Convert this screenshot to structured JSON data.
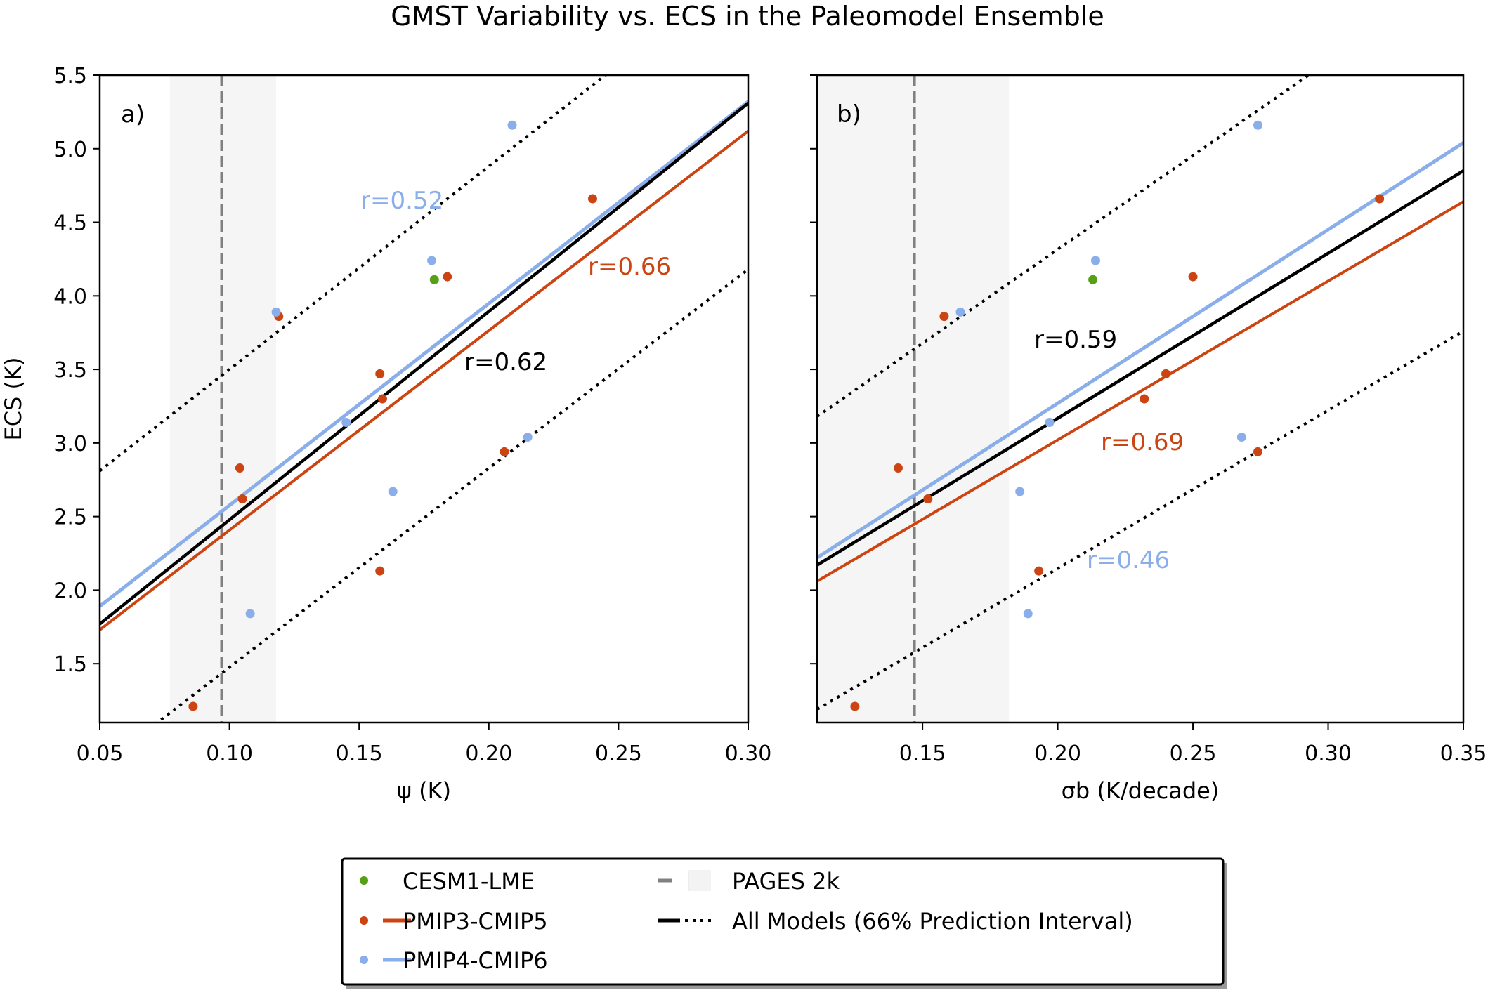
{
  "title": "GMST Variability vs. ECS in the Paleomodel Ensemble",
  "colors": {
    "cesm": "#55a014",
    "pmip3": "#cc4411",
    "pmip4": "#8aaeea",
    "all": "#000000",
    "pages": "#808080",
    "pages_band": "#f5f5f5"
  },
  "legend": {
    "placement": "bottom-center",
    "items": [
      {
        "label": "CESM1-LME"
      },
      {
        "label": "PMIP3-CMIP5"
      },
      {
        "label": "PMIP4-CMIP6"
      },
      {
        "label": "PAGES 2k"
      },
      {
        "label": "All Models (66% Prediction Interval)"
      }
    ]
  },
  "chart_data": [
    {
      "type": "scatter",
      "panel_label": "a)",
      "xlabel": "ψ (K)",
      "ylabel": "ECS (K)",
      "xlim": [
        0.05,
        0.3
      ],
      "ylim": [
        1.1,
        5.5
      ],
      "xticks": [
        "0.05",
        "0.10",
        "0.15",
        "0.20",
        "0.25",
        "0.30"
      ],
      "yticks": [
        "1.5",
        "2.0",
        "2.5",
        "3.0",
        "3.5",
        "4.0",
        "4.5",
        "5.0",
        "5.5"
      ],
      "pages2k": {
        "value": 0.097,
        "range": [
          0.077,
          0.118
        ]
      },
      "series": [
        {
          "name": "CESM1-LME",
          "points": [
            [
              0.179,
              4.11
            ]
          ]
        },
        {
          "name": "PMIP3-CMIP5",
          "points": [
            [
              0.086,
              1.21
            ],
            [
              0.104,
              2.83
            ],
            [
              0.105,
              2.62
            ],
            [
              0.119,
              3.86
            ],
            [
              0.158,
              3.47
            ],
            [
              0.159,
              3.3
            ],
            [
              0.158,
              2.13
            ],
            [
              0.184,
              4.13
            ],
            [
              0.206,
              2.94
            ],
            [
              0.24,
              4.66
            ]
          ],
          "fit": [
            [
              0.05,
              1.73
            ],
            [
              0.3,
              5.12
            ]
          ],
          "r_label": "r=0.66"
        },
        {
          "name": "PMIP4-CMIP6",
          "points": [
            [
              0.108,
              1.84
            ],
            [
              0.118,
              3.89
            ],
            [
              0.145,
              3.14
            ],
            [
              0.163,
              2.67
            ],
            [
              0.178,
              4.24
            ],
            [
              0.215,
              3.04
            ],
            [
              0.209,
              5.16
            ]
          ],
          "fit": [
            [
              0.05,
              1.89
            ],
            [
              0.3,
              5.32
            ]
          ],
          "r_label": "r=0.52"
        },
        {
          "name": "All Models",
          "fit": [
            [
              0.05,
              1.77
            ],
            [
              0.3,
              5.31
            ]
          ],
          "upper": [
            [
              0.05,
              2.81
            ],
            [
              0.3,
              6.26
            ]
          ],
          "lower": [
            [
              0.05,
              0.8
            ],
            [
              0.3,
              4.18
            ]
          ],
          "r_label": "r=0.62"
        }
      ]
    },
    {
      "type": "scatter",
      "panel_label": "b)",
      "xlabel": "σb (K/decade)",
      "ylabel": "",
      "xlim": [
        0.111,
        0.35
      ],
      "ylim": [
        1.1,
        5.5
      ],
      "xticks": [
        "0.15",
        "0.20",
        "0.25",
        "0.30",
        "0.35"
      ],
      "yticks": [
        "1.5",
        "2.0",
        "2.5",
        "3.0",
        "3.5",
        "4.0",
        "4.5",
        "5.0",
        "5.5"
      ],
      "pages2k": {
        "value": 0.147,
        "range": [
          0.111,
          0.182
        ]
      },
      "series": [
        {
          "name": "CESM1-LME",
          "points": [
            [
              0.213,
              4.11
            ]
          ]
        },
        {
          "name": "PMIP3-CMIP5",
          "points": [
            [
              0.125,
              1.21
            ],
            [
              0.141,
              2.83
            ],
            [
              0.152,
              2.62
            ],
            [
              0.158,
              3.86
            ],
            [
              0.24,
              3.47
            ],
            [
              0.232,
              3.3
            ],
            [
              0.193,
              2.13
            ],
            [
              0.25,
              4.13
            ],
            [
              0.274,
              2.94
            ],
            [
              0.319,
              4.66
            ]
          ],
          "fit": [
            [
              0.111,
              2.06
            ],
            [
              0.35,
              4.64
            ]
          ],
          "r_label": "r=0.69"
        },
        {
          "name": "PMIP4-CMIP6",
          "points": [
            [
              0.189,
              1.84
            ],
            [
              0.164,
              3.89
            ],
            [
              0.197,
              3.14
            ],
            [
              0.186,
              2.67
            ],
            [
              0.214,
              4.24
            ],
            [
              0.268,
              3.04
            ],
            [
              0.274,
              5.16
            ]
          ],
          "fit": [
            [
              0.111,
              2.22
            ],
            [
              0.35,
              5.04
            ]
          ],
          "r_label": "r=0.46"
        },
        {
          "name": "All Models",
          "fit": [
            [
              0.111,
              2.17
            ],
            [
              0.35,
              4.85
            ]
          ],
          "upper": [
            [
              0.111,
              3.18
            ],
            [
              0.35,
              6.23
            ]
          ],
          "lower": [
            [
              0.111,
              1.19
            ],
            [
              0.35,
              3.76
            ]
          ],
          "r_label": "r=0.59"
        }
      ]
    }
  ]
}
